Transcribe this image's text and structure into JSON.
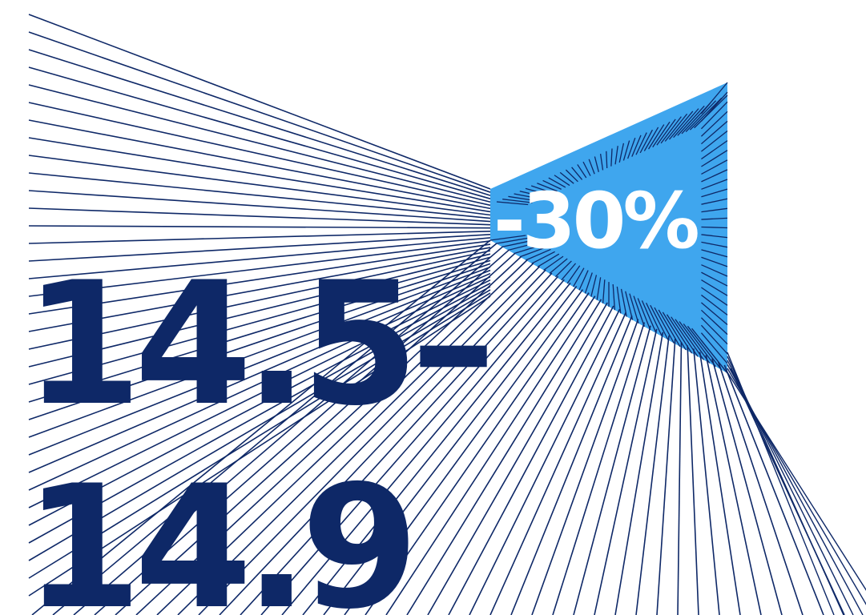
{
  "headline": {
    "range_line1": "14.5–",
    "range_line2": "14.9"
  },
  "badge": {
    "label": "-30%"
  },
  "colors": {
    "navy": "#0e2867",
    "accent_blue": "#3fa6ee",
    "white": "#ffffff",
    "background": "#ffffff"
  }
}
